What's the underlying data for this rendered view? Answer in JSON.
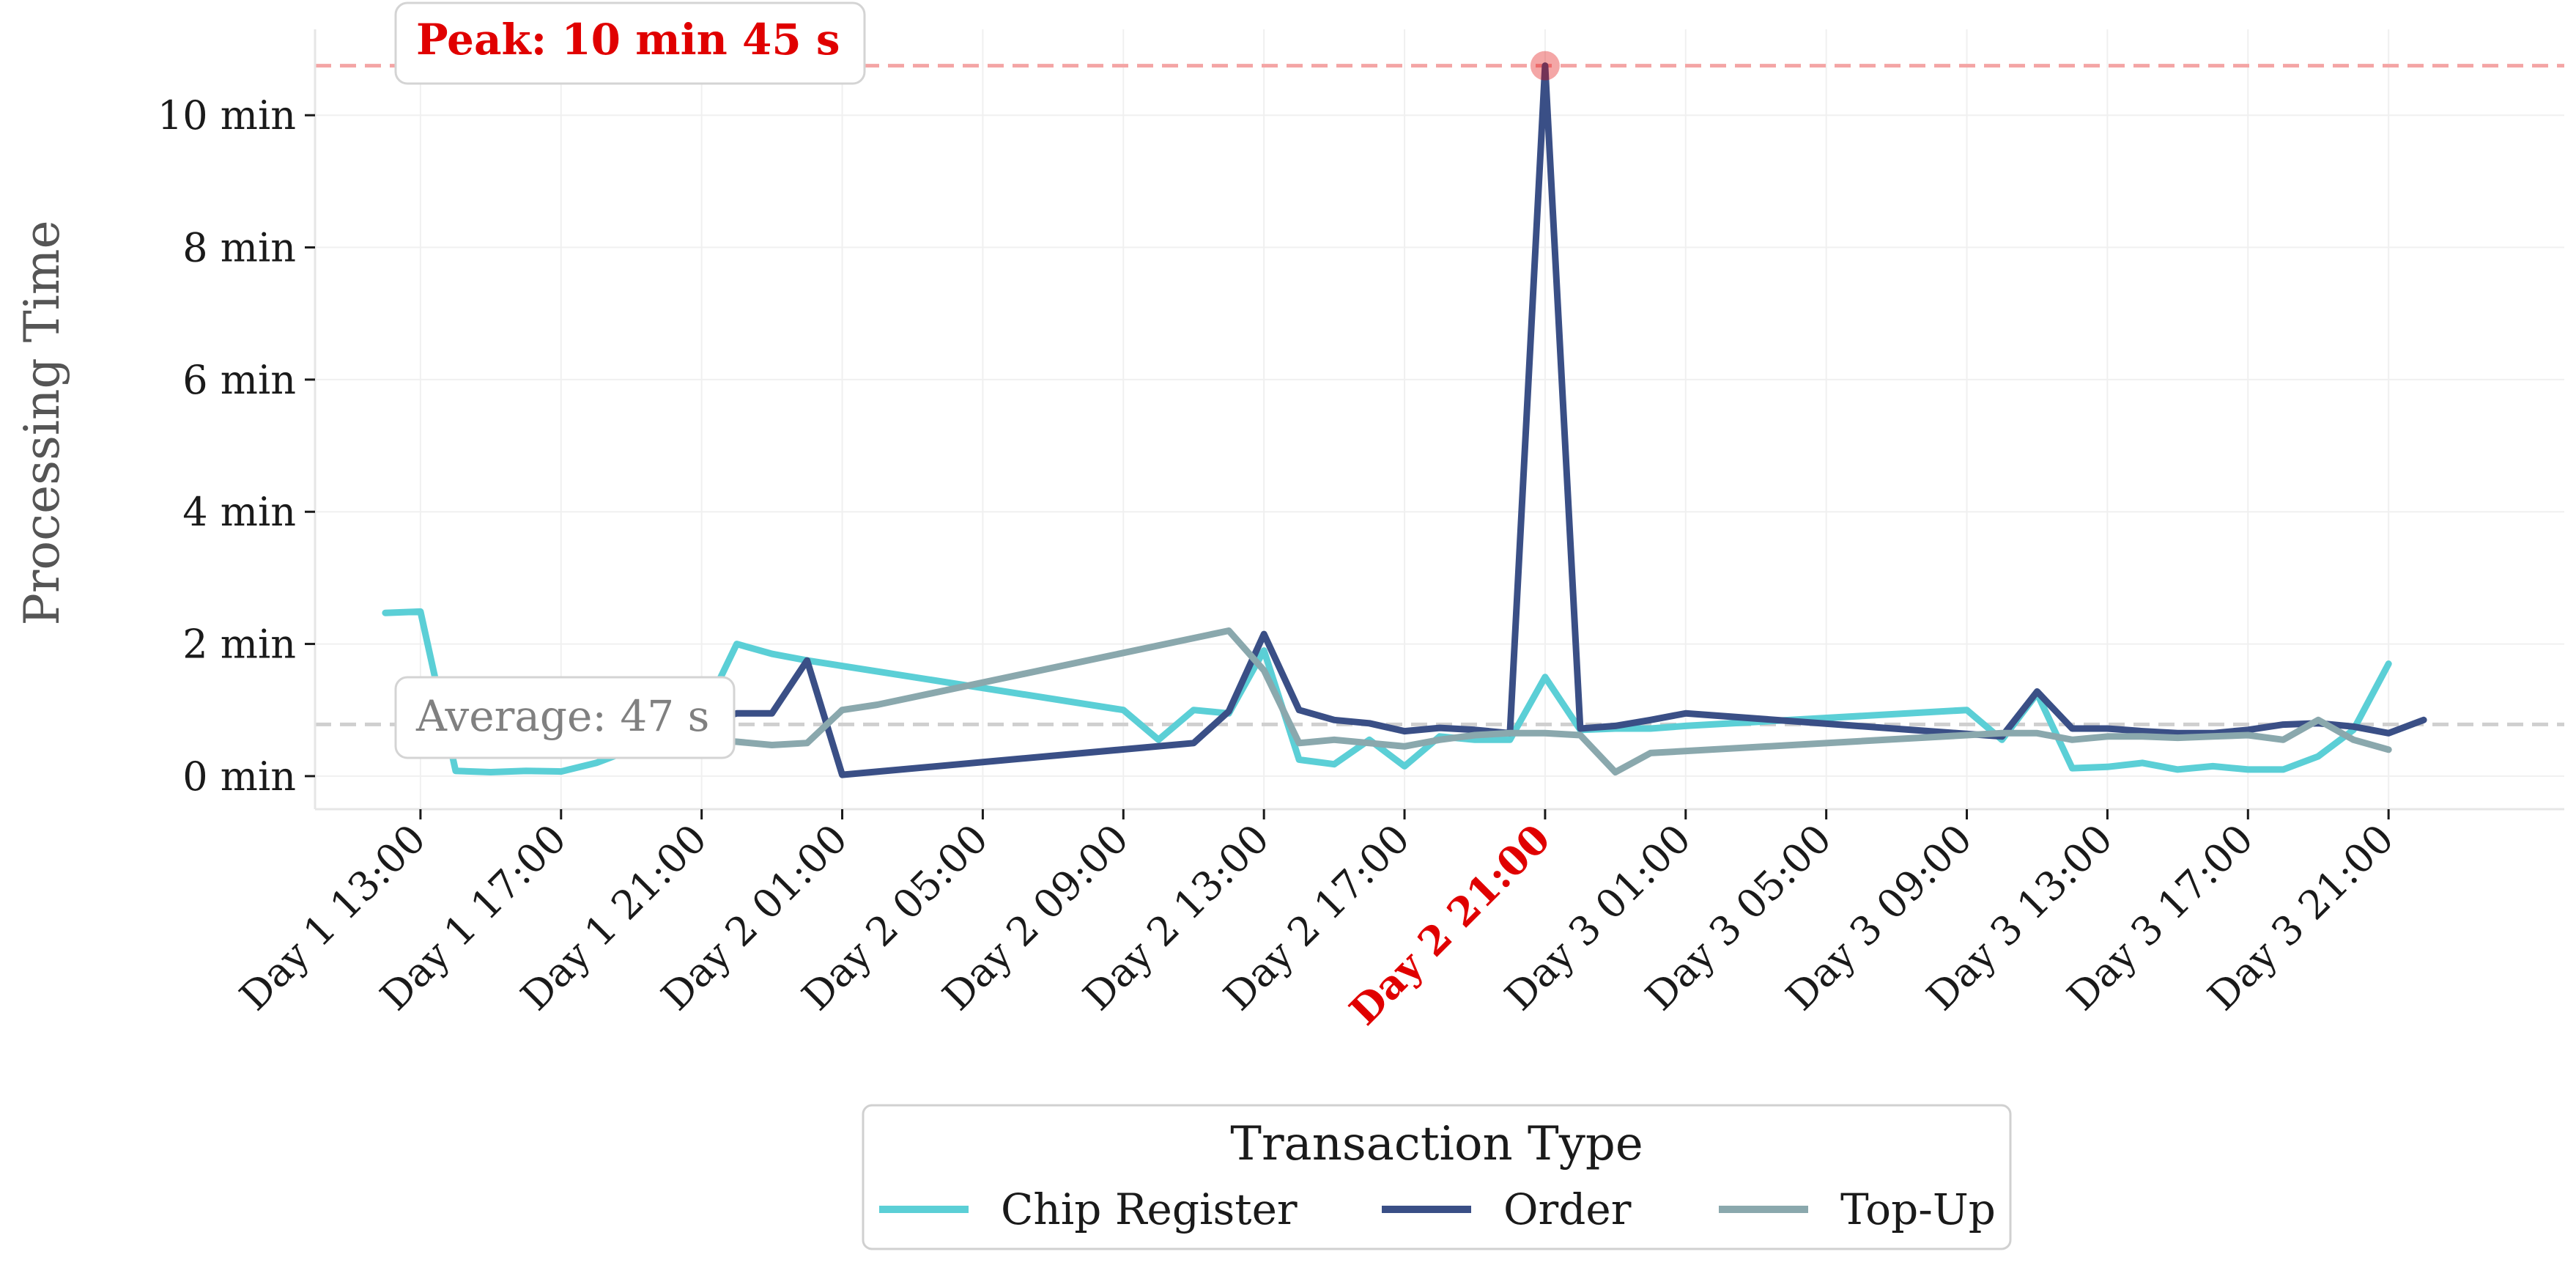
{
  "chart_data": {
    "type": "line",
    "ylabel": "Processing Time",
    "y_unit": "min",
    "ylim": [
      -0.5,
      11.3
    ],
    "yticks": [
      0,
      2,
      4,
      6,
      8,
      10
    ],
    "ytick_labels": [
      "0 min",
      "2 min",
      "4 min",
      "6 min",
      "8 min",
      "10 min"
    ],
    "x_unit": "hours",
    "xlim": [
      10,
      74
    ],
    "xticks": [
      13,
      17,
      21,
      25,
      29,
      33,
      37,
      41,
      45,
      49,
      53,
      57,
      61,
      65,
      69
    ],
    "xtick_labels": [
      "Day 1 13:00",
      "Day 1 17:00",
      "Day 1 21:00",
      "Day 2 01:00",
      "Day 2 05:00",
      "Day 2 09:00",
      "Day 2 13:00",
      "Day 2 17:00",
      "Day 2 21:00",
      "Day 3 01:00",
      "Day 3 05:00",
      "Day 3 09:00",
      "Day 3 13:00",
      "Day 3 17:00",
      "Day 3 21:00"
    ],
    "highlighted_tick": "Day 2 21:00",
    "grid": true,
    "legend": {
      "title": "Transaction Type",
      "placement": "bottom-center"
    },
    "series": [
      {
        "name": "Chip Register",
        "color": "#5bcfd6",
        "points": [
          [
            12,
            2.47
          ],
          [
            13,
            2.49
          ],
          [
            14,
            0.08
          ],
          [
            15,
            0.06
          ],
          [
            16,
            0.08
          ],
          [
            17,
            0.07
          ],
          [
            18,
            0.2
          ],
          [
            19,
            0.4
          ],
          [
            20,
            0.6
          ],
          [
            21,
            0.9
          ],
          [
            22,
            2.0
          ],
          [
            23,
            1.85
          ],
          [
            24,
            1.75
          ],
          [
            33,
            1.0
          ],
          [
            34,
            0.55
          ],
          [
            35,
            1.0
          ],
          [
            36,
            0.95
          ],
          [
            37,
            1.9
          ],
          [
            38,
            0.25
          ],
          [
            39,
            0.18
          ],
          [
            40,
            0.55
          ],
          [
            41,
            0.15
          ],
          [
            42,
            0.6
          ],
          [
            43,
            0.55
          ],
          [
            44,
            0.55
          ],
          [
            45,
            1.5
          ],
          [
            46,
            0.7
          ],
          [
            47,
            0.72
          ],
          [
            48,
            0.72
          ],
          [
            49,
            0.76
          ],
          [
            57,
            1.0
          ],
          [
            58,
            0.55
          ],
          [
            59,
            1.25
          ],
          [
            60,
            0.12
          ],
          [
            61,
            0.14
          ],
          [
            62,
            0.2
          ],
          [
            63,
            0.1
          ],
          [
            64,
            0.15
          ],
          [
            65,
            0.1
          ],
          [
            66,
            0.1
          ],
          [
            67,
            0.3
          ],
          [
            68,
            0.7
          ],
          [
            69,
            1.7
          ]
        ]
      },
      {
        "name": "Order",
        "color": "#3a4f86",
        "points": [
          [
            18,
            0.45
          ],
          [
            19,
            0.5
          ],
          [
            20,
            0.6
          ],
          [
            21,
            0.8
          ],
          [
            22,
            0.95
          ],
          [
            23,
            0.95
          ],
          [
            24,
            1.75
          ],
          [
            25,
            0.02
          ],
          [
            35,
            0.5
          ],
          [
            36,
            0.98
          ],
          [
            37,
            2.15
          ],
          [
            38,
            1.0
          ],
          [
            39,
            0.85
          ],
          [
            40,
            0.8
          ],
          [
            41,
            0.68
          ],
          [
            42,
            0.73
          ],
          [
            43,
            0.7
          ],
          [
            44,
            0.65
          ],
          [
            45,
            10.75
          ],
          [
            46,
            0.72
          ],
          [
            47,
            0.76
          ],
          [
            48,
            0.85
          ],
          [
            49,
            0.95
          ],
          [
            58,
            0.6
          ],
          [
            59,
            1.28
          ],
          [
            60,
            0.72
          ],
          [
            61,
            0.72
          ],
          [
            62,
            0.68
          ],
          [
            63,
            0.65
          ],
          [
            64,
            0.65
          ],
          [
            65,
            0.7
          ],
          [
            66,
            0.78
          ],
          [
            67,
            0.8
          ],
          [
            68,
            0.75
          ],
          [
            69,
            0.65
          ],
          [
            70,
            0.85
          ]
        ]
      },
      {
        "name": "Top-Up",
        "color": "#8aa8ad",
        "points": [
          [
            18,
            0.4
          ],
          [
            19,
            0.45
          ],
          [
            20,
            0.5
          ],
          [
            21,
            0.55
          ],
          [
            22,
            0.52
          ],
          [
            23,
            0.47
          ],
          [
            24,
            0.5
          ],
          [
            25,
            1.0
          ],
          [
            26,
            1.08
          ],
          [
            36,
            2.2
          ],
          [
            37,
            1.6
          ],
          [
            38,
            0.5
          ],
          [
            39,
            0.55
          ],
          [
            40,
            0.5
          ],
          [
            41,
            0.45
          ],
          [
            42,
            0.55
          ],
          [
            43,
            0.62
          ],
          [
            44,
            0.65
          ],
          [
            45,
            0.65
          ],
          [
            46,
            0.62
          ],
          [
            47,
            0.06
          ],
          [
            48,
            0.35
          ],
          [
            58,
            0.65
          ],
          [
            59,
            0.65
          ],
          [
            60,
            0.55
          ],
          [
            61,
            0.6
          ],
          [
            62,
            0.6
          ],
          [
            63,
            0.58
          ],
          [
            64,
            0.6
          ],
          [
            65,
            0.62
          ],
          [
            66,
            0.55
          ],
          [
            67,
            0.85
          ],
          [
            68,
            0.55
          ],
          [
            69,
            0.4
          ]
        ]
      }
    ],
    "peak": {
      "x": 45,
      "y": 10.75,
      "label": "Peak: 10 min 45 s",
      "color": "#e00000"
    },
    "average": {
      "y": 0.783,
      "label": "Average: 47 s",
      "color": "#b0b0b0"
    }
  }
}
